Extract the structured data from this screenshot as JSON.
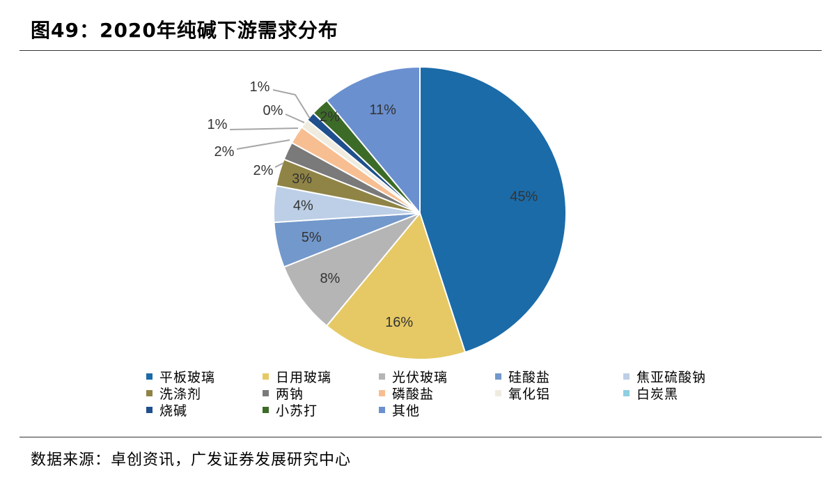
{
  "header": {
    "title": "图49：2020年纯碱下游需求分布"
  },
  "footer": {
    "source": "数据来源：卓创资讯，广发证券发展研究中心"
  },
  "chart_data": {
    "type": "pie",
    "title": "",
    "categories": [
      "平板玻璃",
      "日用玻璃",
      "光伏玻璃",
      "硅酸盐",
      "焦亚硫酸钠",
      "洗涤剂",
      "两钠",
      "磷酸盐",
      "氧化铝",
      "白炭黑",
      "烧碱",
      "小苏打",
      "其他"
    ],
    "values": [
      45,
      16,
      8,
      5,
      4,
      3,
      2,
      2,
      1,
      0,
      1,
      2,
      11
    ],
    "labels": [
      "45%",
      "16%",
      "8%",
      "5%",
      "4%",
      "3%",
      "2%",
      "2%",
      "1%",
      "0%",
      "1%",
      "2%",
      "11%"
    ],
    "colors": [
      "#1B6BA8",
      "#E6C964",
      "#B5B5B5",
      "#7398CB",
      "#BCCFE6",
      "#8F8446",
      "#7A7A7A",
      "#F7BE92",
      "#EFEBDF",
      "#8ECFE0",
      "#1F4F8C",
      "#3C6B27",
      "#6A90D0"
    ],
    "legend_position": "bottom"
  }
}
